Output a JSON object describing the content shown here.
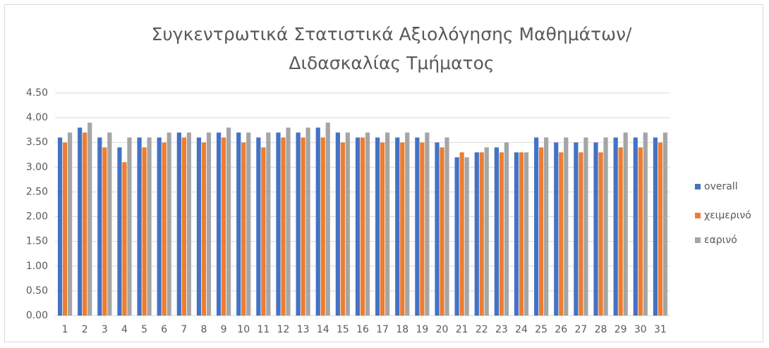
{
  "chart_data": {
    "type": "bar",
    "title": "Συγκεντρωτικά Στατιστικά  Αξιολόγησης Μαθημάτων/Διδασκαλίας Τμήματος",
    "categories": [
      "1",
      "2",
      "3",
      "4",
      "5",
      "6",
      "7",
      "8",
      "9",
      "10",
      "11",
      "12",
      "13",
      "14",
      "15",
      "16",
      "17",
      "18",
      "19",
      "20",
      "21",
      "22",
      "23",
      "24",
      "25",
      "26",
      "27",
      "28",
      "29",
      "30",
      "31"
    ],
    "series": [
      {
        "name": "overall",
        "color": "#4472c4",
        "values": [
          3.6,
          3.8,
          3.6,
          3.4,
          3.6,
          3.6,
          3.7,
          3.6,
          3.7,
          3.7,
          3.6,
          3.7,
          3.7,
          3.8,
          3.7,
          3.6,
          3.6,
          3.6,
          3.6,
          3.5,
          3.2,
          3.3,
          3.4,
          3.3,
          3.6,
          3.5,
          3.5,
          3.5,
          3.6,
          3.6,
          3.6
        ]
      },
      {
        "name": "χειμερινό",
        "color": "#ed7d31",
        "values": [
          3.5,
          3.7,
          3.4,
          3.1,
          3.4,
          3.5,
          3.6,
          3.5,
          3.6,
          3.5,
          3.4,
          3.6,
          3.6,
          3.6,
          3.5,
          3.6,
          3.5,
          3.5,
          3.5,
          3.4,
          3.3,
          3.3,
          3.3,
          3.3,
          3.4,
          3.3,
          3.3,
          3.3,
          3.4,
          3.4,
          3.5
        ]
      },
      {
        "name": "εαρινό",
        "color": "#a5a5a5",
        "values": [
          3.7,
          3.9,
          3.7,
          3.6,
          3.6,
          3.7,
          3.7,
          3.7,
          3.8,
          3.7,
          3.7,
          3.8,
          3.8,
          3.9,
          3.7,
          3.7,
          3.7,
          3.7,
          3.7,
          3.6,
          3.2,
          3.4,
          3.5,
          3.3,
          3.6,
          3.6,
          3.6,
          3.6,
          3.7,
          3.7,
          3.7
        ]
      }
    ],
    "ylim": [
      0,
      4.5
    ],
    "yticks": [
      {
        "value": 0,
        "label": "0.00"
      },
      {
        "value": 0.5,
        "label": "0.50"
      },
      {
        "value": 1,
        "label": "1.00"
      },
      {
        "value": 1.5,
        "label": "1.50"
      },
      {
        "value": 2,
        "label": "2.00"
      },
      {
        "value": 2.5,
        "label": "2.50"
      },
      {
        "value": 3,
        "label": "3.00"
      },
      {
        "value": 3.5,
        "label": "3.50"
      },
      {
        "value": 4,
        "label": "4.00"
      },
      {
        "value": 4.5,
        "label": "4.50"
      }
    ],
    "grid": true,
    "legend": "right"
  }
}
